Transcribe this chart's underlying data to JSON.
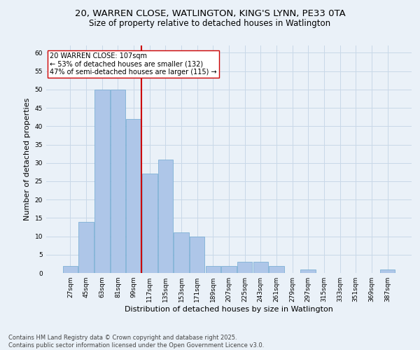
{
  "title_line1": "20, WARREN CLOSE, WATLINGTON, KING'S LYNN, PE33 0TA",
  "title_line2": "Size of property relative to detached houses in Watlington",
  "xlabel": "Distribution of detached houses by size in Watlington",
  "ylabel": "Number of detached properties",
  "categories": [
    "27sqm",
    "45sqm",
    "63sqm",
    "81sqm",
    "99sqm",
    "117sqm",
    "135sqm",
    "153sqm",
    "171sqm",
    "189sqm",
    "207sqm",
    "225sqm",
    "243sqm",
    "261sqm",
    "279sqm",
    "297sqm",
    "315sqm",
    "333sqm",
    "351sqm",
    "369sqm",
    "387sqm"
  ],
  "values": [
    2,
    14,
    50,
    50,
    42,
    27,
    31,
    11,
    10,
    2,
    2,
    3,
    3,
    2,
    0,
    1,
    0,
    0,
    0,
    0,
    1
  ],
  "bar_color": "#aec6e8",
  "bar_edge_color": "#6fa8d0",
  "vline_x_index": 4.5,
  "vline_color": "#cc0000",
  "annotation_text": "20 WARREN CLOSE: 107sqm\n← 53% of detached houses are smaller (132)\n47% of semi-detached houses are larger (115) →",
  "annotation_box_color": "#ffffff",
  "annotation_box_edge": "#cc0000",
  "ylim": [
    0,
    62
  ],
  "yticks": [
    0,
    5,
    10,
    15,
    20,
    25,
    30,
    35,
    40,
    45,
    50,
    55,
    60
  ],
  "grid_color": "#c8d8e8",
  "background_color": "#eaf1f8",
  "footer_line1": "Contains HM Land Registry data © Crown copyright and database right 2025.",
  "footer_line2": "Contains public sector information licensed under the Open Government Licence v3.0.",
  "title_fontsize": 9.5,
  "subtitle_fontsize": 8.5,
  "xlabel_fontsize": 8,
  "ylabel_fontsize": 8,
  "tick_fontsize": 6.5,
  "footer_fontsize": 6,
  "annotation_fontsize": 7
}
